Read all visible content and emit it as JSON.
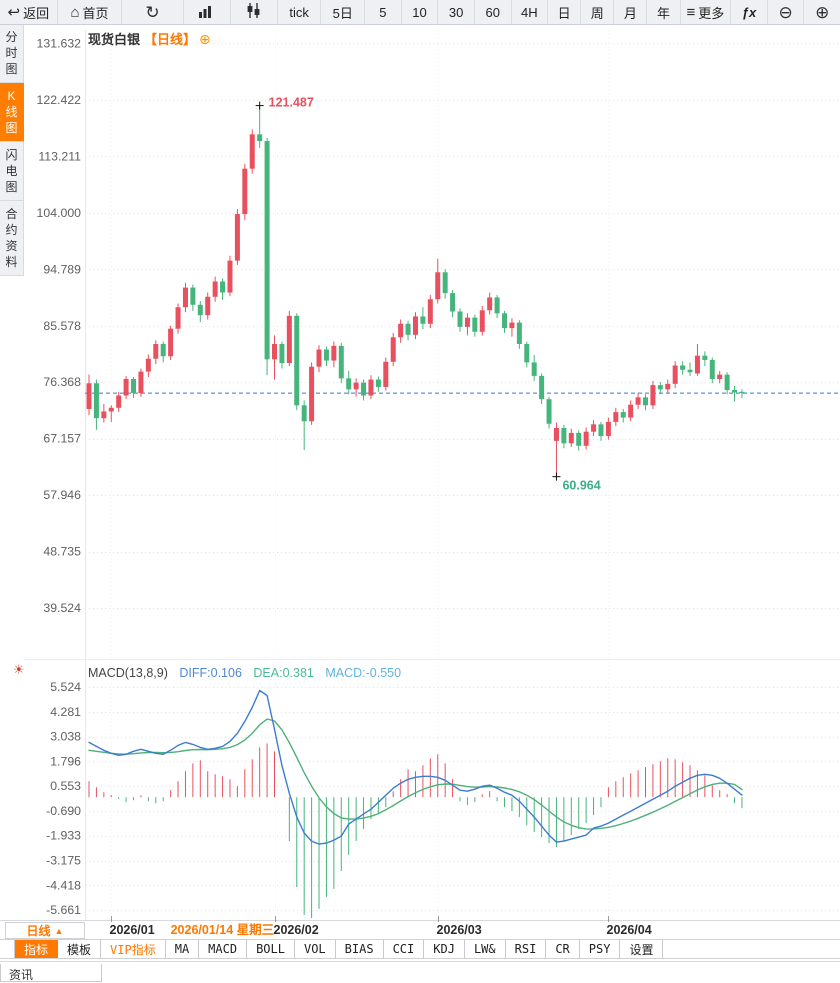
{
  "toolbar": {
    "back": "返回",
    "home": "首页",
    "tick": "tick",
    "d5": "5日",
    "m5": "5",
    "m10": "10",
    "m30": "30",
    "m60": "60",
    "h4": "4H",
    "day": "日",
    "week": "周",
    "month": "月",
    "year": "年",
    "more": "更多",
    "fx_label": "ƒx"
  },
  "sidebar": {
    "items": [
      {
        "label": "分时图",
        "active": false
      },
      {
        "label": "K线图",
        "active": true
      },
      {
        "label": "闪电图",
        "active": false
      },
      {
        "label": "合约资料",
        "active": false
      }
    ]
  },
  "chart_header": {
    "symbol": "现货白银",
    "period_tag": "【日线】",
    "add_icon": "⊕"
  },
  "macd_header": {
    "name": "MACD(13,8,9)",
    "diff": "DIFF:0.106",
    "dea": "DEA:0.381",
    "macd": "MACD:-0.550"
  },
  "bottom": {
    "period_label": "日线",
    "period_arrow": "▲",
    "news_tab": "资讯",
    "tabs": [
      {
        "label": "指标",
        "style": "active"
      },
      {
        "label": "模板",
        "style": "normal"
      },
      {
        "label": "VIP指标",
        "style": "vip"
      },
      {
        "label": "MA",
        "style": "normal"
      },
      {
        "label": "MACD",
        "style": "normal"
      },
      {
        "label": "BOLL",
        "style": "normal"
      },
      {
        "label": "VOL",
        "style": "normal"
      },
      {
        "label": "BIAS",
        "style": "normal"
      },
      {
        "label": "CCI",
        "style": "normal"
      },
      {
        "label": "KDJ",
        "style": "normal"
      },
      {
        "label": "LW&",
        "style": "normal"
      },
      {
        "label": "RSI",
        "style": "normal"
      },
      {
        "label": "CR",
        "style": "normal"
      },
      {
        "label": "PSY",
        "style": "normal"
      },
      {
        "label": "设置",
        "style": "normal"
      }
    ]
  },
  "chart_data": {
    "type": "candlestick",
    "title": "现货白银 日线",
    "price_axis_ticks": [
      "131.632",
      "122.422",
      "113.211",
      "104.000",
      "94.789",
      "85.578",
      "76.368",
      "67.157",
      "57.946",
      "48.735",
      "39.524"
    ],
    "macd_axis_ticks": [
      "5.524",
      "4.281",
      "3.038",
      "1.796",
      "0.553",
      "-0.690",
      "-1.933",
      "-3.175",
      "-4.418",
      "-5.661"
    ],
    "x_ticks": [
      {
        "label": "2026/01",
        "index": 3
      },
      {
        "label": "2026/02",
        "index": 25
      },
      {
        "label": "2026/03",
        "index": 47
      },
      {
        "label": "2026/04",
        "index": 70
      }
    ],
    "selected_date": {
      "label": "2026/01/14 星期三",
      "index": 11
    },
    "annotations": {
      "high": "121.487",
      "low": "60.964"
    },
    "high_value": 121.487,
    "low_value": 60.964,
    "last_price": 74.6,
    "colors": {
      "up": "#e8505f",
      "down": "#45b57c",
      "diff_line": "#3b7cd0",
      "dea_line": "#4fb07a",
      "grid": "#e2e2ea",
      "last_price_line": "#2f7ed8",
      "high_label": "#e8505f",
      "low_label": "#3aaf85",
      "accent_orange": "#ff7800"
    },
    "candles_ohlc": [
      [
        72.0,
        77.6,
        71.0,
        76.2
      ],
      [
        76.2,
        76.8,
        68.6,
        70.5
      ],
      [
        70.5,
        72.8,
        69.8,
        71.6
      ],
      [
        71.6,
        72.6,
        69.9,
        72.2
      ],
      [
        72.2,
        74.8,
        71.5,
        74.2
      ],
      [
        74.2,
        77.4,
        73.6,
        76.9
      ],
      [
        76.9,
        77.2,
        73.8,
        74.6
      ],
      [
        74.6,
        78.6,
        74.0,
        78.1
      ],
      [
        78.1,
        80.9,
        77.2,
        80.2
      ],
      [
        80.2,
        83.2,
        79.3,
        82.6
      ],
      [
        82.6,
        83.0,
        79.6,
        80.6
      ],
      [
        80.6,
        85.6,
        80.0,
        85.1
      ],
      [
        85.1,
        89.2,
        84.3,
        88.6
      ],
      [
        88.6,
        92.6,
        87.8,
        91.8
      ],
      [
        91.8,
        92.3,
        88.0,
        89.0
      ],
      [
        89.0,
        89.6,
        86.2,
        87.3
      ],
      [
        87.3,
        91.0,
        86.6,
        90.3
      ],
      [
        90.3,
        93.6,
        89.5,
        92.8
      ],
      [
        92.8,
        93.3,
        89.8,
        91.0
      ],
      [
        91.0,
        97.0,
        90.4,
        96.2
      ],
      [
        96.2,
        104.6,
        95.5,
        103.8
      ],
      [
        103.8,
        112.0,
        102.8,
        111.2
      ],
      [
        111.2,
        117.6,
        110.4,
        116.8
      ],
      [
        116.8,
        121.487,
        114.6,
        115.7
      ],
      [
        115.7,
        116.2,
        77.5,
        80.1
      ],
      [
        80.1,
        84.0,
        76.8,
        82.6
      ],
      [
        82.6,
        83.0,
        78.6,
        79.5
      ],
      [
        79.5,
        88.0,
        79.0,
        87.2
      ],
      [
        87.2,
        87.6,
        71.8,
        72.6
      ],
      [
        72.6,
        73.4,
        65.3,
        70.0
      ],
      [
        70.0,
        79.6,
        69.4,
        78.9
      ],
      [
        78.9,
        82.4,
        78.0,
        81.7
      ],
      [
        81.7,
        82.2,
        79.0,
        79.9
      ],
      [
        79.9,
        83.0,
        78.8,
        82.3
      ],
      [
        82.3,
        82.8,
        76.2,
        77.0
      ],
      [
        77.0,
        78.2,
        74.4,
        75.2
      ],
      [
        75.2,
        77.0,
        74.0,
        76.3
      ],
      [
        76.3,
        76.8,
        73.4,
        74.2
      ],
      [
        74.2,
        77.5,
        73.6,
        76.8
      ],
      [
        76.8,
        77.3,
        74.8,
        75.6
      ],
      [
        75.6,
        80.4,
        75.0,
        79.7
      ],
      [
        79.7,
        84.4,
        79.0,
        83.7
      ],
      [
        83.7,
        86.6,
        82.8,
        85.9
      ],
      [
        85.9,
        86.4,
        83.2,
        84.1
      ],
      [
        84.1,
        87.8,
        83.4,
        87.1
      ],
      [
        87.1,
        88.6,
        85.0,
        85.9
      ],
      [
        85.9,
        90.6,
        85.2,
        89.9
      ],
      [
        89.9,
        96.5,
        89.2,
        94.3
      ],
      [
        94.3,
        94.8,
        90.0,
        90.9
      ],
      [
        90.9,
        91.4,
        87.0,
        87.9
      ],
      [
        87.9,
        88.4,
        84.6,
        85.4
      ],
      [
        85.4,
        87.6,
        84.0,
        86.9
      ],
      [
        86.9,
        87.4,
        83.8,
        84.6
      ],
      [
        84.6,
        88.8,
        84.0,
        88.1
      ],
      [
        88.1,
        91.0,
        87.4,
        90.2
      ],
      [
        90.2,
        90.6,
        86.8,
        87.6
      ],
      [
        87.6,
        88.0,
        84.4,
        85.2
      ],
      [
        85.2,
        86.8,
        83.8,
        86.1
      ],
      [
        86.1,
        86.5,
        81.8,
        82.6
      ],
      [
        82.6,
        83.0,
        78.8,
        79.6
      ],
      [
        79.6,
        80.8,
        76.6,
        77.4
      ],
      [
        77.4,
        77.8,
        72.8,
        73.6
      ],
      [
        73.6,
        74.0,
        68.8,
        69.6
      ],
      [
        66.8,
        69.8,
        60.964,
        68.9
      ],
      [
        68.9,
        69.4,
        65.6,
        66.4
      ],
      [
        66.4,
        68.8,
        65.8,
        68.1
      ],
      [
        68.1,
        68.5,
        65.2,
        66.0
      ],
      [
        66.0,
        69.0,
        65.4,
        68.3
      ],
      [
        68.3,
        70.2,
        67.6,
        69.5
      ],
      [
        69.5,
        69.9,
        66.8,
        67.6
      ],
      [
        67.6,
        70.6,
        67.0,
        69.9
      ],
      [
        69.9,
        72.2,
        69.2,
        71.5
      ],
      [
        71.5,
        72.0,
        69.8,
        70.6
      ],
      [
        70.6,
        73.4,
        70.0,
        72.7
      ],
      [
        72.7,
        74.6,
        72.0,
        73.9
      ],
      [
        73.9,
        74.4,
        71.8,
        72.6
      ],
      [
        72.6,
        76.6,
        72.0,
        75.9
      ],
      [
        75.9,
        76.4,
        74.4,
        75.2
      ],
      [
        75.2,
        76.8,
        74.6,
        76.1
      ],
      [
        76.1,
        79.8,
        75.4,
        79.1
      ],
      [
        79.1,
        79.8,
        77.6,
        78.4
      ],
      [
        78.4,
        79.6,
        77.4,
        78.0
      ],
      [
        77.8,
        82.6,
        77.4,
        80.7
      ],
      [
        80.7,
        81.4,
        79.0,
        80.0
      ],
      [
        80.0,
        80.4,
        76.2,
        76.9
      ],
      [
        76.9,
        78.2,
        76.2,
        77.6
      ],
      [
        77.6,
        78.0,
        74.4,
        75.1
      ],
      [
        75.1,
        75.8,
        73.2,
        74.7
      ],
      [
        74.8,
        75.2,
        73.8,
        74.6
      ]
    ],
    "macd": {
      "params": [
        13,
        8,
        9
      ],
      "diff": [
        2.75,
        2.55,
        2.35,
        2.2,
        2.1,
        2.15,
        2.3,
        2.4,
        2.3,
        2.2,
        2.15,
        2.35,
        2.6,
        2.75,
        2.65,
        2.5,
        2.4,
        2.45,
        2.55,
        2.8,
        3.2,
        3.8,
        4.5,
        5.35,
        5.1,
        3.4,
        1.6,
        0.2,
        -1.0,
        -1.8,
        -2.2,
        -2.35,
        -2.3,
        -2.15,
        -1.95,
        -1.35,
        -1.1,
        -0.85,
        -0.6,
        -0.25,
        0.1,
        0.45,
        0.7,
        0.9,
        1.0,
        1.05,
        1.05,
        1.0,
        0.85,
        0.6,
        0.35,
        0.3,
        0.4,
        0.55,
        0.6,
        0.45,
        0.25,
        0.1,
        -0.2,
        -0.6,
        -1.0,
        -1.45,
        -1.9,
        -2.25,
        -2.2,
        -2.1,
        -2.0,
        -1.9,
        -1.55,
        -1.45,
        -1.3,
        -1.1,
        -0.9,
        -0.7,
        -0.5,
        -0.3,
        -0.1,
        0.1,
        0.3,
        0.55,
        0.75,
        0.95,
        1.1,
        1.15,
        1.1,
        0.95,
        0.7,
        0.4,
        0.106
      ],
      "dea": [
        2.35,
        2.3,
        2.25,
        2.2,
        2.17,
        2.16,
        2.18,
        2.22,
        2.24,
        2.24,
        2.23,
        2.24,
        2.28,
        2.34,
        2.38,
        2.39,
        2.38,
        2.4,
        2.43,
        2.5,
        2.64,
        2.87,
        3.2,
        3.63,
        3.92,
        3.82,
        3.38,
        2.74,
        1.99,
        1.23,
        0.55,
        -0.03,
        -0.48,
        -0.82,
        -1.04,
        -1.1,
        -1.1,
        -1.05,
        -0.96,
        -0.82,
        -0.63,
        -0.42,
        -0.19,
        0.03,
        0.22,
        0.39,
        0.52,
        0.62,
        0.66,
        0.65,
        0.59,
        0.53,
        0.5,
        0.51,
        0.53,
        0.51,
        0.46,
        0.39,
        0.27,
        0.1,
        -0.12,
        -0.39,
        -0.69,
        -1.0,
        -1.24,
        -1.41,
        -1.53,
        -1.6,
        -1.59,
        -1.56,
        -1.51,
        -1.43,
        -1.32,
        -1.2,
        -1.06,
        -0.91,
        -0.75,
        -0.58,
        -0.4,
        -0.21,
        -0.02,
        0.17,
        0.36,
        0.52,
        0.64,
        0.7,
        0.7,
        0.64,
        0.381
      ],
      "hist": [
        0.8,
        0.5,
        0.25,
        0.1,
        -0.1,
        -0.25,
        -0.15,
        0.1,
        -0.2,
        -0.3,
        -0.2,
        0.35,
        0.8,
        1.3,
        1.7,
        1.85,
        1.3,
        1.15,
        1.05,
        0.9,
        0.55,
        1.4,
        1.9,
        2.5,
        2.7,
        2.3,
        0.0,
        -2.2,
        -4.5,
        -5.9,
        -6.1,
        -5.6,
        -5.0,
        -4.6,
        -3.7,
        -2.9,
        -2.2,
        -1.6,
        -1.1,
        -0.8,
        -0.5,
        0.3,
        0.9,
        1.4,
        1.3,
        1.6,
        1.95,
        2.15,
        1.7,
        0.9,
        -0.2,
        -0.4,
        -0.25,
        0.15,
        0.3,
        -0.2,
        -0.5,
        -0.7,
        -1.0,
        -1.4,
        -1.75,
        -2.0,
        -2.3,
        -2.5,
        -2.2,
        -1.9,
        -1.6,
        -1.3,
        -0.9,
        -0.5,
        0.5,
        0.8,
        1.0,
        1.2,
        1.35,
        1.5,
        1.65,
        1.8,
        1.95,
        1.9,
        1.75,
        1.6,
        1.35,
        1.1,
        0.6,
        0.35,
        0.15,
        -0.3,
        -0.55
      ]
    }
  }
}
